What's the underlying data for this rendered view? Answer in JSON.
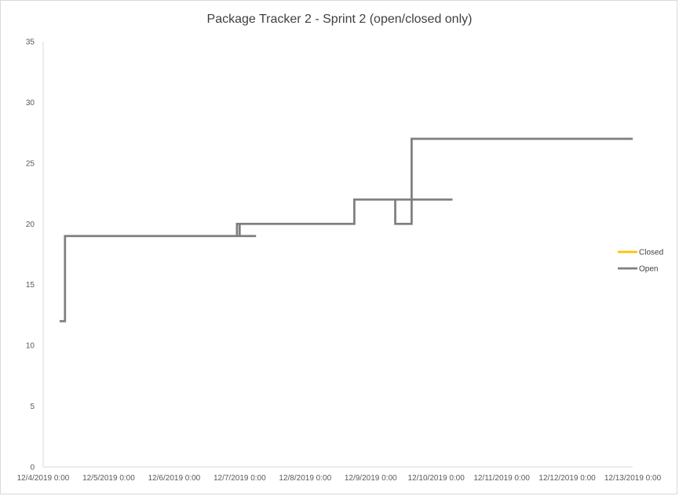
{
  "chart_data": {
    "type": "line",
    "title": "Package Tracker 2 - Sprint 2 (open/closed only)",
    "xlabel": "",
    "ylabel": "",
    "ylim": [
      0,
      35
    ],
    "yticks": [
      0,
      5,
      10,
      15,
      20,
      25,
      30,
      35
    ],
    "xticks": [
      "12/4/2019 0:00",
      "12/5/2019 0:00",
      "12/6/2019 0:00",
      "12/7/2019 0:00",
      "12/8/2019 0:00",
      "12/9/2019 0:00",
      "12/10/2019 0:00",
      "12/11/2019 0:00",
      "12/12/2019 0:00",
      "12/13/2019 0:00"
    ],
    "xlim": [
      "12/4/2019 0:00",
      "12/13/2019 0:00"
    ],
    "grid": false,
    "legend": "right",
    "series": [
      {
        "name": "Closed",
        "color": "#ffc000",
        "points": []
      },
      {
        "name": "Open",
        "color": "#7f7f7f",
        "points": [
          {
            "x": "12/4/2019 6:00",
            "y": 12
          },
          {
            "x": "12/4/2019 8:00",
            "y": 12
          },
          {
            "x": "12/4/2019 8:00",
            "y": 19
          },
          {
            "x": "12/7/2019 0:00",
            "y": 19
          },
          {
            "x": "12/7/2019 0:00",
            "y": 20
          },
          {
            "x": "12/6/2019 23:00",
            "y": 20
          },
          {
            "x": "12/6/2019 23:00",
            "y": 19
          },
          {
            "x": "12/7/2019 6:00",
            "y": 19
          },
          {
            "x": "12/7/2019 0:00",
            "y": 19
          },
          {
            "x": "12/7/2019 0:00",
            "y": 20
          },
          {
            "x": "12/8/2019 18:00",
            "y": 20
          },
          {
            "x": "12/8/2019 18:00",
            "y": 22
          },
          {
            "x": "12/9/2019 15:00",
            "y": 22
          },
          {
            "x": "12/9/2019 15:00",
            "y": 27
          },
          {
            "x": "12/9/2019 15:00",
            "y": 22
          },
          {
            "x": "12/10/2019 6:00",
            "y": 22
          },
          {
            "x": "12/9/2019 9:00",
            "y": 22
          },
          {
            "x": "12/9/2019 9:00",
            "y": 20
          },
          {
            "x": "12/9/2019 9:00",
            "y": 20
          },
          {
            "x": "12/9/2019 15:00",
            "y": 20
          },
          {
            "x": "12/9/2019 15:00",
            "y": 27
          },
          {
            "x": "12/13/2019 0:00",
            "y": 27
          }
        ]
      }
    ]
  }
}
